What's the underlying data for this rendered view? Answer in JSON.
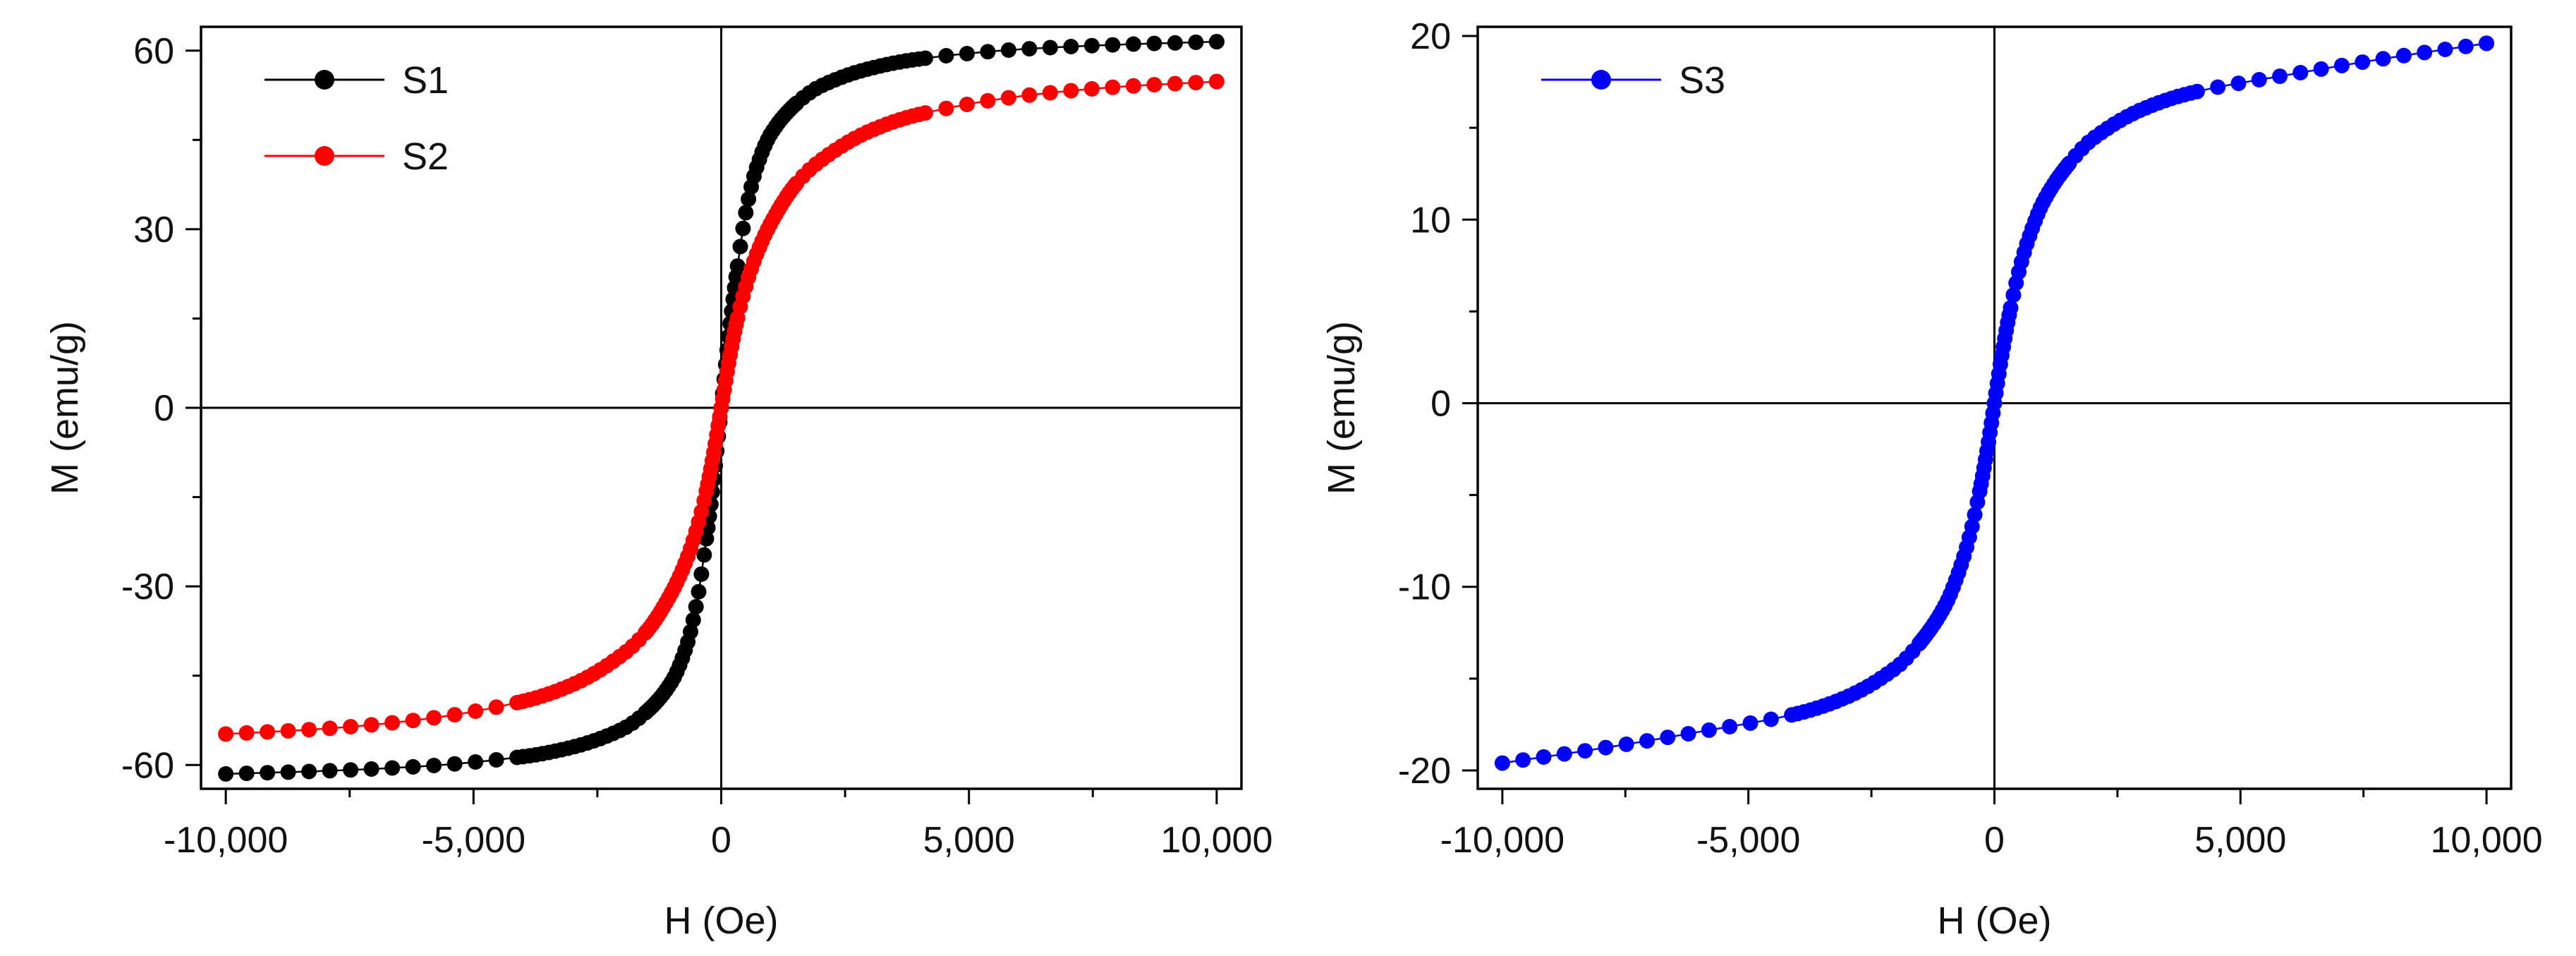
{
  "chart_data": [
    {
      "type": "scatter",
      "xlabel": "H (Oe)",
      "ylabel": "M (emu/g)",
      "xlim": [
        -10500,
        10500
      ],
      "ylim": [
        -64,
        64
      ],
      "xticks": [
        -10000,
        -5000,
        0,
        5000,
        10000
      ],
      "xtick_labels": [
        "-10,000",
        "-5,000",
        "0",
        "5,000",
        "10,000"
      ],
      "yticks": [
        -60,
        -30,
        0,
        30,
        60
      ],
      "ytick_labels": [
        "-60",
        "-30",
        "0",
        "30",
        "60"
      ],
      "grid": false,
      "zero_lines": true,
      "legend_position": "top-left",
      "series": [
        {
          "name": "S1",
          "color": "#000000",
          "x": [
            -10000,
            -8000,
            -6000,
            -4000,
            -3000,
            -2000,
            -1500,
            -1000,
            -700,
            -500,
            -300,
            -150,
            -50,
            0,
            50,
            150,
            300,
            500,
            700,
            1000,
            1500,
            2000,
            3000,
            4000,
            6000,
            8000,
            10000
          ],
          "y": [
            -61.5,
            -61.0,
            -60.2,
            -58.6,
            -57.0,
            -54.0,
            -51.0,
            -46.0,
            -40.0,
            -33.0,
            -22.0,
            -12.0,
            -4.0,
            0,
            4.0,
            12.0,
            22.0,
            33.0,
            40.0,
            46.0,
            51.0,
            54.0,
            57.0,
            58.6,
            60.2,
            61.0,
            61.5
          ]
        },
        {
          "name": "S2",
          "color": "#ff0000",
          "x": [
            -10000,
            -8000,
            -6000,
            -4000,
            -3000,
            -2000,
            -1500,
            -1000,
            -700,
            -500,
            -300,
            -150,
            -50,
            0,
            50,
            150,
            300,
            500,
            700,
            1000,
            1500,
            2000,
            3000,
            4000,
            6000,
            8000,
            10000
          ],
          "y": [
            -54.8,
            -53.9,
            -52.3,
            -49.3,
            -46.5,
            -41.5,
            -37.5,
            -31.0,
            -25.5,
            -20.5,
            -14.0,
            -7.5,
            -2.5,
            0,
            2.5,
            7.5,
            14.0,
            20.5,
            25.5,
            31.0,
            37.5,
            41.5,
            46.5,
            49.3,
            52.3,
            53.9,
            54.8
          ]
        }
      ]
    },
    {
      "type": "scatter",
      "xlabel": "H (Oe)",
      "ylabel": "M (emu/g)",
      "xlim": [
        -10500,
        10500
      ],
      "ylim": [
        -21,
        20.5
      ],
      "xticks": [
        -10000,
        -5000,
        0,
        5000,
        10000
      ],
      "xtick_labels": [
        "-10,000",
        "-5,000",
        "0",
        "5,000",
        "10,000"
      ],
      "yticks": [
        -20,
        -10,
        0,
        10,
        20
      ],
      "ytick_labels": [
        "-20",
        "-10",
        "0",
        "10",
        "20"
      ],
      "grid": false,
      "zero_lines": true,
      "legend_position": "top-left",
      "series": [
        {
          "name": "S3",
          "color": "#0000ff",
          "x": [
            -10000,
            -8000,
            -6000,
            -4000,
            -3000,
            -2000,
            -1500,
            -1000,
            -700,
            -500,
            -300,
            -150,
            -50,
            0,
            50,
            150,
            300,
            500,
            700,
            1000,
            1500,
            2000,
            3000,
            4000,
            6000,
            8000,
            10000
          ],
          "y": [
            -19.6,
            -18.8,
            -17.9,
            -16.9,
            -16.0,
            -14.4,
            -13.0,
            -11.0,
            -9.0,
            -7.2,
            -4.8,
            -2.6,
            -0.9,
            0,
            0.9,
            2.6,
            4.8,
            7.2,
            9.0,
            11.0,
            13.0,
            14.4,
            16.0,
            16.9,
            17.9,
            18.8,
            19.6
          ]
        }
      ]
    }
  ]
}
